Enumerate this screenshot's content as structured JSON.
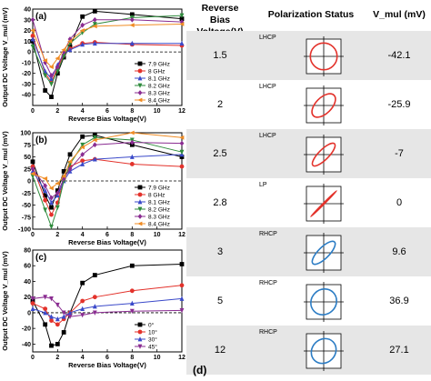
{
  "chart_data": [
    {
      "type": "line",
      "panel_label": "(a)",
      "xlabel": "Reverse Bias Voltage(V)",
      "ylabel": "Output DC Voltage V_mul (mV)",
      "xlim": [
        0,
        12
      ],
      "ylim": [
        -50,
        40
      ],
      "xticks": [
        0,
        2,
        4,
        6,
        8,
        10,
        12
      ],
      "yticks": [
        -40,
        -30,
        -20,
        -10,
        0,
        10,
        20,
        30,
        40
      ],
      "x": [
        0,
        1,
        1.5,
        2,
        2.5,
        3,
        4,
        5,
        8,
        12
      ],
      "legend_position": "lower-right",
      "series": [
        {
          "name": "7.9 GHz",
          "color": "#000000",
          "marker": "square",
          "values": [
            10,
            -36,
            -42,
            -20,
            -5,
            5,
            33,
            38,
            35,
            31
          ]
        },
        {
          "name": "8 GHz",
          "color": "#e3322b",
          "marker": "circle",
          "values": [
            15,
            -20,
            -28,
            -15,
            -3,
            3,
            8,
            9,
            7,
            6
          ]
        },
        {
          "name": "8.1 GHz",
          "color": "#3a49c9",
          "marker": "triangle",
          "values": [
            12,
            -18,
            -25,
            -12,
            -2,
            2,
            7,
            8,
            8,
            8
          ]
        },
        {
          "name": "8.2 GHz",
          "color": "#2e8b3c",
          "marker": "triangle-down",
          "values": [
            5,
            -22,
            -30,
            -18,
            -4,
            8,
            18,
            26,
            32,
            34
          ]
        },
        {
          "name": "8.3 GHz",
          "color": "#8a2c91",
          "marker": "diamond",
          "values": [
            30,
            -10,
            -22,
            -14,
            0,
            12,
            25,
            30,
            30,
            28
          ]
        },
        {
          "name": "8.4 GHz",
          "color": "#f08c24",
          "marker": "triangle-left",
          "values": [
            20,
            -8,
            -14,
            -6,
            2,
            10,
            20,
            24,
            25,
            26
          ]
        }
      ]
    },
    {
      "type": "line",
      "panel_label": "(b)",
      "xlabel": "Reverse Bias Voltage(V)",
      "ylabel": "Output DC Voltage V_mul (mV)",
      "xlim": [
        0,
        12
      ],
      "ylim": [
        -100,
        100
      ],
      "xticks": [
        0,
        2,
        4,
        6,
        8,
        10,
        12
      ],
      "yticks": [
        -100,
        -75,
        -50,
        -25,
        0,
        25,
        50,
        75,
        100
      ],
      "x": [
        0,
        1,
        1.5,
        2,
        2.5,
        3,
        4,
        5,
        8,
        12
      ],
      "legend_position": "lower-right",
      "series": [
        {
          "name": "7.9 GHz",
          "color": "#000000",
          "marker": "square",
          "values": [
            40,
            -30,
            -55,
            -20,
            20,
            55,
            92,
            95,
            75,
            50
          ]
        },
        {
          "name": "8 GHz",
          "color": "#e3322b",
          "marker": "circle",
          "values": [
            30,
            -40,
            -70,
            -45,
            5,
            30,
            42,
            45,
            35,
            30
          ]
        },
        {
          "name": "8.1 GHz",
          "color": "#3a49c9",
          "marker": "triangle",
          "values": [
            20,
            -20,
            -45,
            -30,
            0,
            20,
            35,
            45,
            50,
            55
          ]
        },
        {
          "name": "8.2 GHz",
          "color": "#2e8b3c",
          "marker": "triangle-down",
          "values": [
            10,
            -60,
            -95,
            -55,
            0,
            35,
            75,
            90,
            85,
            60
          ]
        },
        {
          "name": "8.3 GHz",
          "color": "#8a2c91",
          "marker": "diamond",
          "values": [
            25,
            -10,
            -35,
            -25,
            5,
            25,
            55,
            75,
            80,
            78
          ]
        },
        {
          "name": "8.4 GHz",
          "color": "#f08c24",
          "marker": "triangle-left",
          "values": [
            15,
            5,
            -15,
            -5,
            10,
            40,
            70,
            85,
            100,
            90
          ]
        }
      ]
    },
    {
      "type": "line",
      "panel_label": "(c)",
      "xlabel": "Reverse Bias Voltage(V)",
      "ylabel": "Output DC Voltage V_mul (mV)",
      "xlim": [
        0,
        12
      ],
      "ylim": [
        -50,
        80
      ],
      "xticks": [
        0,
        2,
        4,
        6,
        8,
        10,
        12
      ],
      "yticks": [
        -40,
        -20,
        0,
        20,
        40,
        60,
        80
      ],
      "x": [
        0,
        1,
        1.5,
        2,
        2.5,
        3,
        4,
        5,
        8,
        12
      ],
      "legend_position": "lower-right",
      "series": [
        {
          "name": "0°",
          "color": "#000000",
          "marker": "square",
          "values": [
            15,
            -15,
            -42,
            -40,
            -25,
            0,
            38,
            48,
            60,
            62
          ]
        },
        {
          "name": "10°",
          "color": "#e3322b",
          "marker": "circle",
          "values": [
            12,
            5,
            -10,
            -15,
            -8,
            0,
            15,
            20,
            28,
            35
          ]
        },
        {
          "name": "30°",
          "color": "#3a49c9",
          "marker": "triangle",
          "values": [
            5,
            0,
            -5,
            -8,
            -5,
            0,
            5,
            8,
            12,
            18
          ]
        },
        {
          "name": "45°",
          "color": "#8a2c91",
          "marker": "triangle-down",
          "values": [
            18,
            20,
            18,
            10,
            0,
            -5,
            -3,
            0,
            2,
            3
          ]
        }
      ]
    }
  ],
  "table": {
    "headers": {
      "voltage": "Reverse Bias Voltage(V)",
      "polarization": "Polarization Status",
      "vmul": "V_mul (mV)"
    },
    "panel_label": "(d)",
    "rows": [
      {
        "voltage": "1.5",
        "pol": "LHCP",
        "vmul": "-42.1",
        "color": "#e3322b",
        "rx": 0.92,
        "ry": 0.92,
        "rot": 0
      },
      {
        "voltage": "2",
        "pol": "LHCP",
        "vmul": "-25.9",
        "color": "#e3322b",
        "rx": 1.0,
        "ry": 0.55,
        "rot": -45
      },
      {
        "voltage": "2.5",
        "pol": "LHCP",
        "vmul": "-7",
        "color": "#e3322b",
        "rx": 1.05,
        "ry": 0.35,
        "rot": -45
      },
      {
        "voltage": "2.8",
        "pol": "LP",
        "vmul": "0",
        "color": "#e3322b",
        "rx": 1.25,
        "ry": 0.0,
        "rot": -45
      },
      {
        "voltage": "3",
        "pol": "RHCP",
        "vmul": "9.6",
        "color": "#2b7cc4",
        "rx": 1.05,
        "ry": 0.38,
        "rot": -45
      },
      {
        "voltage": "5",
        "pol": "RHCP",
        "vmul": "36.9",
        "color": "#2b7cc4",
        "rx": 0.92,
        "ry": 0.85,
        "rot": -45
      },
      {
        "voltage": "12",
        "pol": "RHCP",
        "vmul": "27.1",
        "color": "#2b7cc4",
        "rx": 0.9,
        "ry": 0.8,
        "rot": -45
      }
    ]
  }
}
